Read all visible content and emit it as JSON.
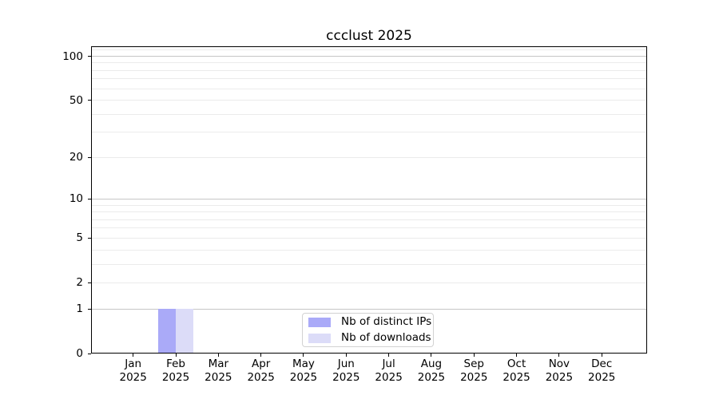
{
  "figure": {
    "background": "#ffffff"
  },
  "chart_data": {
    "type": "bar",
    "title": "ccclust 2025",
    "xlabel": "",
    "ylabel": "",
    "x": {
      "months": [
        "Jan",
        "Feb",
        "Mar",
        "Apr",
        "May",
        "Jun",
        "Jul",
        "Aug",
        "Sep",
        "Oct",
        "Nov",
        "Dec"
      ],
      "year": "2025"
    },
    "series": [
      {
        "name": "Nb of distinct IPs",
        "color": "#aaaaf8",
        "values": [
          0,
          1,
          0,
          0,
          0,
          0,
          0,
          0,
          0,
          0,
          0,
          0
        ]
      },
      {
        "name": "Nb of downloads",
        "color": "#dcdcf8",
        "values": [
          0,
          1,
          0,
          0,
          0,
          0,
          0,
          0,
          0,
          0,
          0,
          0
        ]
      }
    ],
    "y_axis": {
      "scale": "log1p",
      "lim": [
        0,
        117
      ],
      "ticks": [
        0,
        1,
        2,
        5,
        10,
        20,
        50,
        100
      ],
      "major_grid": [
        1,
        10,
        100
      ],
      "minor_grid": [
        2,
        3,
        4,
        5,
        6,
        7,
        8,
        9,
        20,
        30,
        40,
        50,
        60,
        70,
        80,
        90,
        110
      ]
    },
    "grid": true,
    "legend": {
      "position": "lower center",
      "entries": [
        "Nb of distinct IPs",
        "Nb of downloads"
      ]
    }
  },
  "colors": {
    "grid_major": "#c6c6c6",
    "grid_minor": "#ebebeb",
    "axis": "#000000"
  }
}
